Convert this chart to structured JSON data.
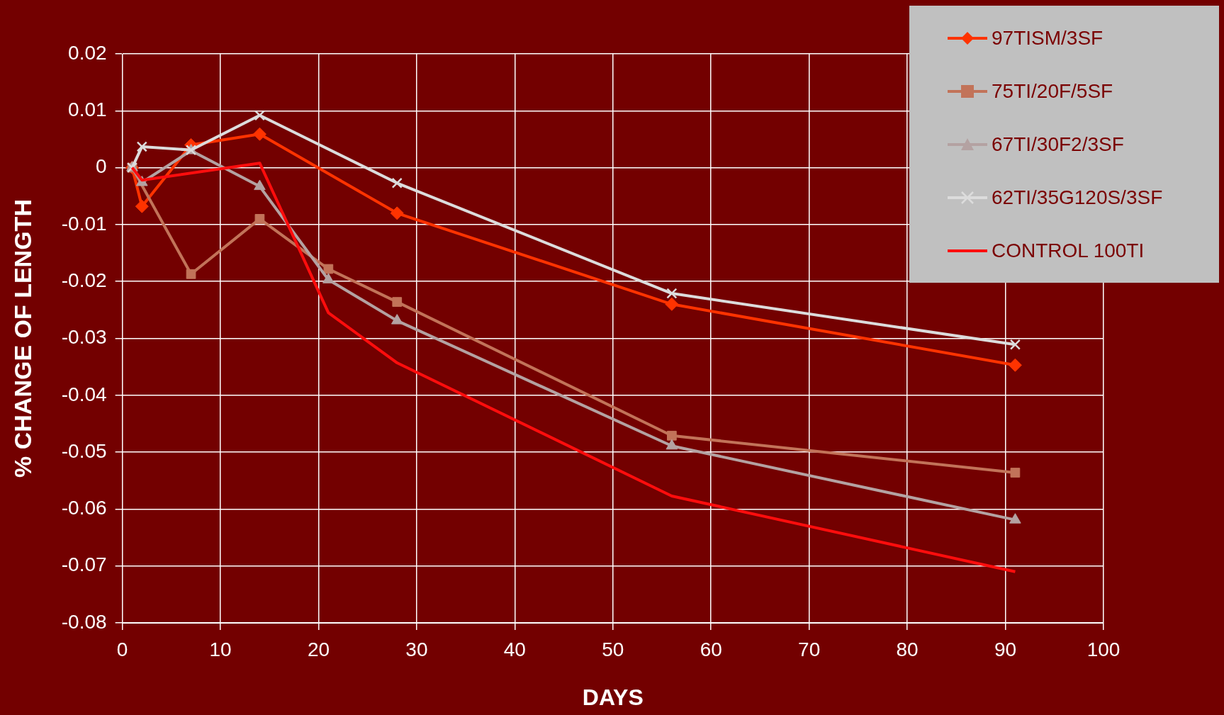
{
  "chart_data": {
    "type": "line",
    "xlabel": "DAYS",
    "ylabel": "% CHANGE OF LENGTH",
    "xlim": [
      0,
      100
    ],
    "xticks": [
      0,
      10,
      20,
      30,
      40,
      50,
      60,
      70,
      80,
      90,
      100
    ],
    "ylim": [
      -0.08,
      0.02
    ],
    "yticks": [
      -0.08,
      -0.07,
      -0.06,
      -0.05,
      -0.04,
      -0.03,
      -0.02,
      -0.01,
      0,
      0.01,
      0.02
    ],
    "grid": true,
    "legend": "top right",
    "line_style": "solid",
    "series": [
      {
        "name": "97TISM/3SF",
        "color": "#ff3300",
        "marker": "diamond",
        "x": [
          1,
          2,
          7,
          14,
          28,
          56,
          91
        ],
        "values": [
          0,
          -0.0068,
          0.004,
          0.0059,
          -0.008,
          -0.024,
          -0.0347
        ]
      },
      {
        "name": "75TI/20F/5SF",
        "color": "#c27359",
        "marker": "square",
        "x": [
          1,
          7,
          14,
          21,
          28,
          56,
          91
        ],
        "values": [
          0,
          -0.0187,
          -0.009,
          -0.0178,
          -0.0236,
          -0.0471,
          -0.0536
        ]
      },
      {
        "name": "67TI/30F2/3SF",
        "color": "#b4a2a2",
        "marker": "triangle",
        "x": [
          1,
          2,
          7,
          14,
          21,
          28,
          56,
          91
        ],
        "values": [
          0,
          -0.0026,
          0.003,
          -0.0033,
          -0.0197,
          -0.0269,
          -0.0489,
          -0.0619
        ]
      },
      {
        "name": "62TI/35G120S/3SF",
        "color": "#dcdcdc",
        "marker": "cross",
        "x": [
          1,
          2,
          7,
          14,
          28,
          56,
          91
        ],
        "values": [
          0,
          0.0037,
          0.0031,
          0.0092,
          -0.0027,
          -0.0221,
          -0.0311
        ]
      },
      {
        "name": "CONTROL 100TI",
        "color": "#ff0d0d",
        "marker": "none",
        "x": [
          1,
          2,
          14,
          21,
          28,
          56,
          91
        ],
        "values": [
          0,
          -0.0022,
          0.0008,
          -0.0255,
          -0.0343,
          -0.0577,
          -0.071
        ]
      }
    ]
  }
}
